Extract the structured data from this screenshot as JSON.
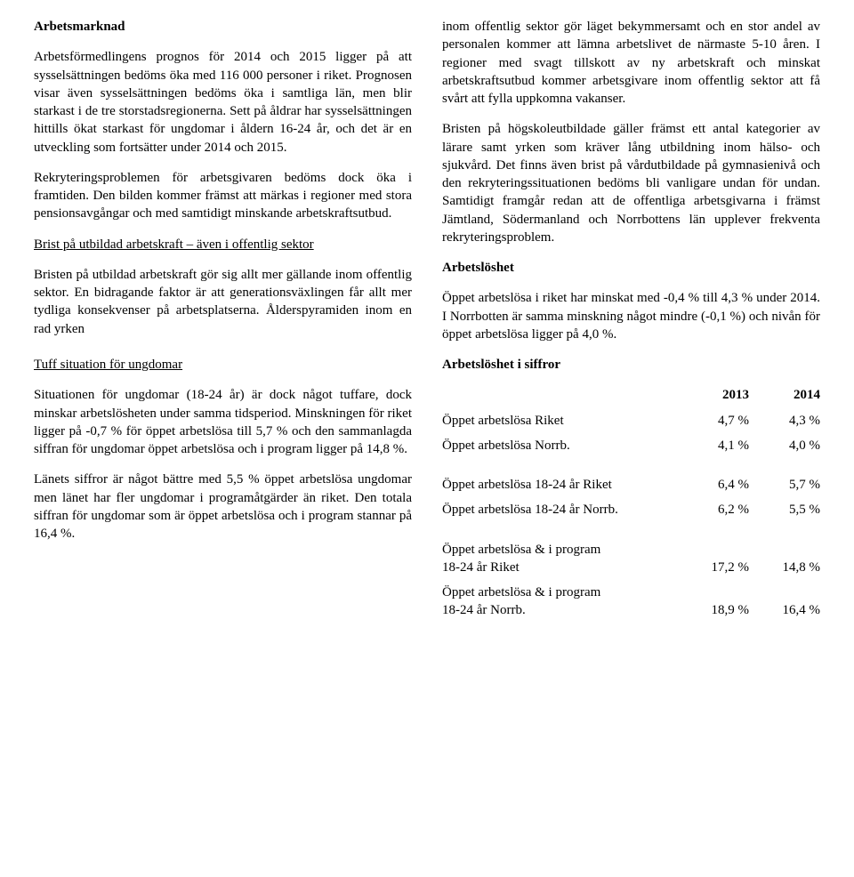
{
  "left": {
    "title": "Arbetsmarknad",
    "p1": "Arbetsförmedlingens prognos för 2014 och 2015 ligger på att sysselsättningen bedöms öka med 116 000 personer i riket. Prognosen visar även sysselsättningen bedöms öka i samtliga län, men blir starkast i de tre storstadsregionerna. Sett på åldrar har sysselsättningen hittills ökat starkast för ungdomar i åldern 16-24 år, och det är en utveckling som fortsätter under 2014 och 2015.",
    "p2": "Rekryteringsproblemen för arbetsgivaren bedöms dock öka i framtiden. Den bilden kommer främst att märkas i regioner med stora pensionsavgångar och med samtidigt minskande arbetskraftsutbud.",
    "u1": "Brist på utbildad arbetskraft – även i offentlig sektor",
    "p3": "Bristen på utbildad arbetskraft gör sig allt mer gällande inom offentlig sektor. En bidragande faktor är att generationsväxlingen får allt mer tydliga konsekvenser på arbetsplatserna. Ålderspyramiden inom en rad yrken"
  },
  "right": {
    "p1": "inom offentlig sektor gör läget bekymmersamt och en stor andel av personalen kommer att lämna arbetslivet de närmaste 5-10 åren. I regioner med svagt tillskott av ny arbetskraft och minskat arbetskraftsutbud kommer arbetsgivare inom offentlig sektor att få svårt att fylla uppkomna vakanser.",
    "p2": "Bristen på högskoleutbildade gäller främst ett antal kategorier av lärare samt yrken som kräver lång utbildning inom hälso- och sjukvård. Det finns även brist på vårdutbildade på gymnasienivå och den rekryteringssituationen bedöms bli vanligare undan för undan. Samtidigt framgår redan att de offentliga arbetsgivarna i främst Jämtland, Södermanland och Norrbottens län upplever frekventa rekryteringsproblem.",
    "h2": "Arbetslöshet",
    "p3": "Öppet arbetslösa i riket har minskat med -0,4 % till 4,3 % under 2014. I Norrbotten är samma minskning något mindre (-0,1 %) och nivån för öppet arbetslösa ligger på 4,0 %."
  },
  "left2": {
    "u1": "Tuff situation för ungdomar",
    "p1": "Situationen för ungdomar (18-24 år) är dock något tuffare, dock minskar arbetslösheten under samma tidsperiod. Minskningen för riket ligger på -0,7 % för öppet arbetslösa till 5,7 % och den sammanlagda siffran för ungdomar öppet arbetslösa och i program ligger på 14,8 %.",
    "p2": "Länets siffror är något bättre med 5,5 % öppet arbetslösa ungdomar men länet har fler ungdomar i programåtgärder än riket. Den totala siffran för ungdomar som är öppet arbetslösa och i program stannar på 16,4 %."
  },
  "right2": {
    "h1": "Arbetslöshet i siffror",
    "head_y1": "2013",
    "head_y2": "2014",
    "rows": [
      {
        "label": "Öppet arbetslösa Riket",
        "v1": "4,7 %",
        "v2": "4,3 %"
      },
      {
        "label": "Öppet arbetslösa Norrb.",
        "v1": "4,1 %",
        "v2": "4,0 %"
      }
    ],
    "rows2": [
      {
        "label": "Öppet arbetslösa 18-24 år Riket",
        "v1": "6,4 %",
        "v2": "5,7 %"
      },
      {
        "label": "Öppet arbetslösa 18-24 år Norrb.",
        "v1": "6,2 %",
        "v2": "5,5 %"
      }
    ],
    "rows3": [
      {
        "label1": "Öppet arbetslösa & i program",
        "label2": "18-24 år Riket",
        "v1": "17,2 %",
        "v2": "14,8 %"
      },
      {
        "label1": "Öppet arbetslösa & i program",
        "label2": "18-24 år Norrb.",
        "v1": "18,9 %",
        "v2": "16,4 %"
      }
    ]
  }
}
